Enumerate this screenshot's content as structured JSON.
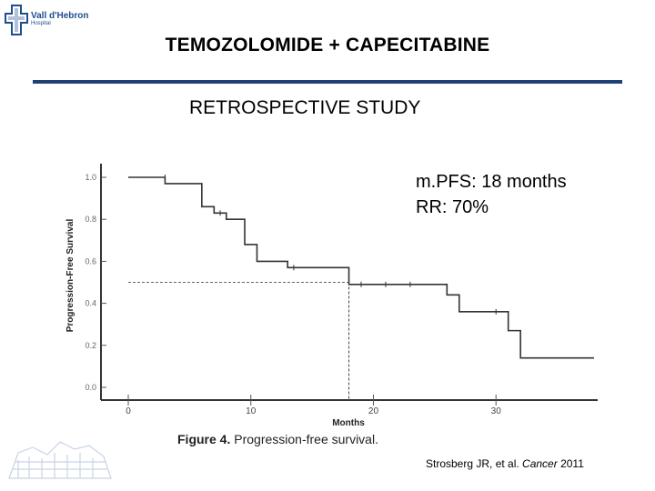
{
  "header": {
    "logo": {
      "name": "Vall d'Hebron",
      "sub": "Hospital"
    },
    "title": "TEMOZOLOMIDE + CAPECITABINE",
    "subtitle": "RETROSPECTIVE STUDY"
  },
  "annotations": {
    "mpfs": "m.PFS: 18 months",
    "rr": "RR: 70%"
  },
  "citation": {
    "authors": "Strosberg JR, et al. ",
    "journal": "Cancer",
    "year": " 2011"
  },
  "colors": {
    "accent": "#1f3f75",
    "logo": "#1f4e8c"
  },
  "chart_data": {
    "type": "line",
    "title": "",
    "caption_label": "Figure 4.",
    "caption_text": " Progression-free survival.",
    "xlabel": "Months",
    "ylabel": "Progression-Free Survival",
    "xlim": [
      0,
      38
    ],
    "ylim": [
      0,
      1.0
    ],
    "xticks": [
      "0",
      "10",
      "20",
      "30"
    ],
    "yticks": [
      "0.0",
      "0.2",
      "0.4",
      "0.6",
      "0.8",
      "1.0"
    ],
    "median_line": {
      "y": 0.5,
      "x": 18
    },
    "series": [
      {
        "steps": [
          [
            0,
            1.0
          ],
          [
            3,
            0.97
          ],
          [
            6,
            0.86
          ],
          [
            7,
            0.83
          ],
          [
            8,
            0.8
          ],
          [
            9.5,
            0.68
          ],
          [
            10.5,
            0.6
          ],
          [
            13,
            0.57
          ],
          [
            18,
            0.49
          ],
          [
            26,
            0.44
          ],
          [
            27,
            0.36
          ],
          [
            31,
            0.27
          ],
          [
            32,
            0.14
          ],
          [
            38,
            0.14
          ]
        ],
        "censored": [
          [
            3,
            1.0
          ],
          [
            7.5,
            0.83
          ],
          [
            13.5,
            0.57
          ],
          [
            19,
            0.49
          ],
          [
            21,
            0.49
          ],
          [
            23,
            0.49
          ],
          [
            30,
            0.36
          ]
        ]
      }
    ]
  }
}
